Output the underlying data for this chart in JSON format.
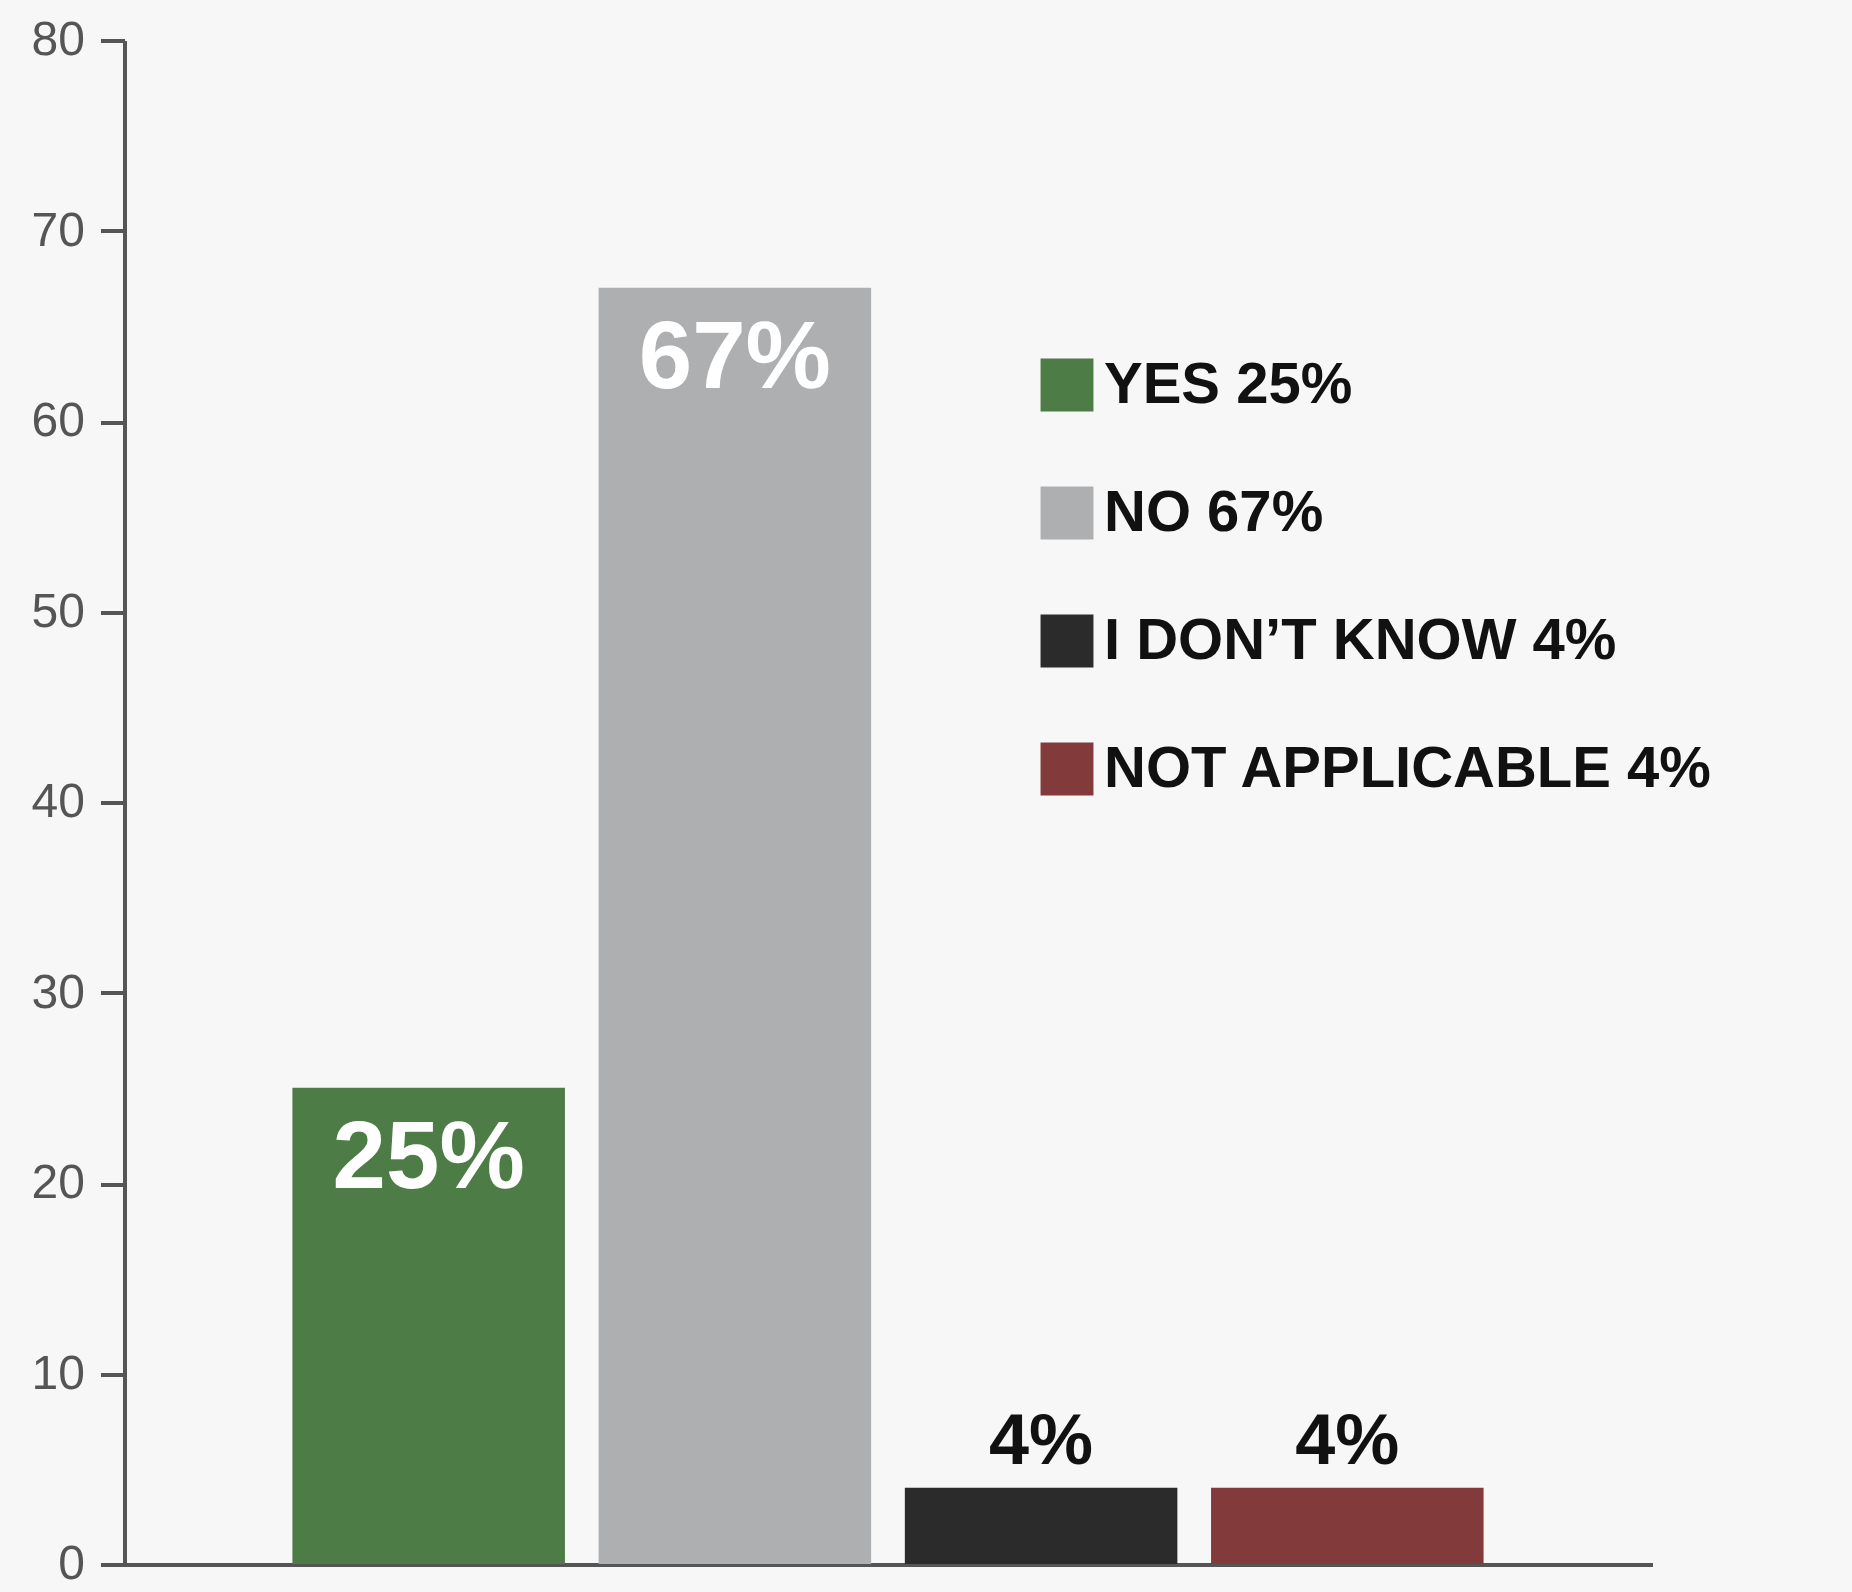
{
  "chart_data": {
    "type": "bar",
    "categories": [
      null,
      null,
      null,
      null
    ],
    "series": [
      {
        "name": "YES  25%",
        "color": "#4e7c46",
        "values": [
          25,
          null,
          null,
          null
        ],
        "value_labels": [
          "25%",
          null,
          null,
          null
        ]
      },
      {
        "name": "NO  67%",
        "color": "#aeafb1",
        "values": [
          null,
          67,
          null,
          null
        ],
        "value_labels": [
          null,
          "67%",
          null,
          null
        ]
      },
      {
        "name": "I DON’T KNOW  4%",
        "color": "#2b2b2b",
        "values": [
          null,
          null,
          4,
          null
        ],
        "value_labels": [
          null,
          null,
          "4%",
          null
        ]
      },
      {
        "name": "NOT APPLICABLE  4%",
        "color": "#833a3a",
        "values": [
          null,
          null,
          null,
          4
        ],
        "value_labels": [
          null,
          null,
          null,
          "4%"
        ]
      }
    ],
    "ylim": [
      0,
      80
    ],
    "yticks": [
      0,
      10,
      20,
      30,
      40,
      50,
      60,
      70,
      80
    ],
    "tick_labels": "y",
    "legend": "top right"
  }
}
